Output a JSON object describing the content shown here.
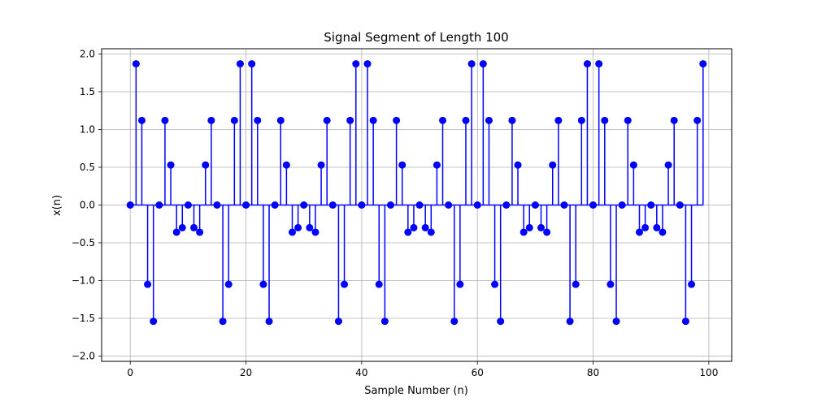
{
  "chart_data": {
    "type": "stem",
    "title": "Signal Segment of Length 100",
    "xlabel": "Sample Number (n)",
    "ylabel": "x(n)",
    "xlim": [
      -4.95,
      103.95
    ],
    "ylim": [
      -2.07,
      2.07
    ],
    "xticks": [
      0,
      20,
      40,
      60,
      80,
      100
    ],
    "xtick_labels": [
      "0",
      "20",
      "40",
      "60",
      "80",
      "100"
    ],
    "yticks": [
      2.0,
      1.5,
      1.0,
      0.5,
      0.0,
      -0.5,
      -1.0,
      -1.5,
      -2.0
    ],
    "ytick_labels": [
      "2.0",
      "1.5",
      "1.0",
      "0.5",
      "0.0",
      "−0.5",
      "−1.0",
      "−1.5",
      "−2.0"
    ],
    "grid": true,
    "baseline": 0,
    "color": "#0000ff",
    "period": 20,
    "pattern": [
      0,
      1.87,
      1.12,
      -1.05,
      -1.54,
      0,
      1.12,
      0.53,
      -0.36,
      -0.3,
      0,
      -0.3,
      -0.36,
      0.53,
      1.12,
      0,
      -1.54,
      -1.05,
      1.12,
      1.87
    ],
    "n_samples": 100
  }
}
